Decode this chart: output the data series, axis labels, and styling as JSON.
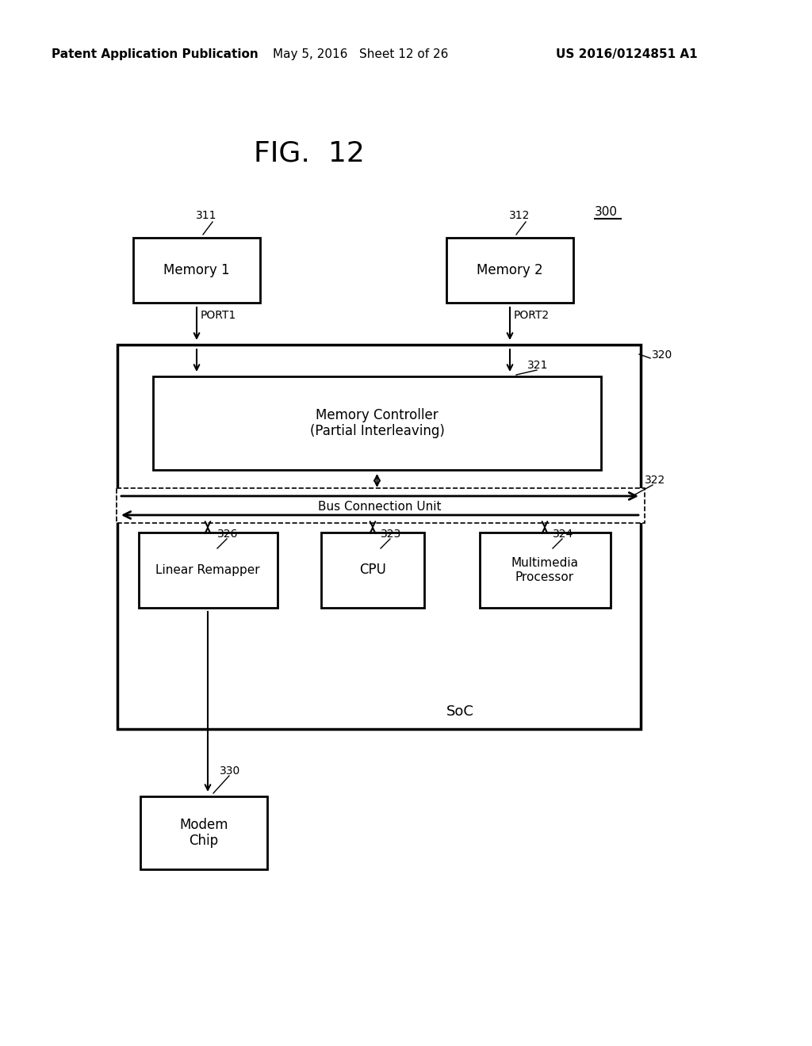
{
  "bg_color": "#ffffff",
  "header_left": "Patent Application Publication",
  "header_mid": "May 5, 2016   Sheet 12 of 26",
  "header_right": "US 2016/0124851 A1",
  "fig_label": "FIG.  12",
  "ref_300": "300",
  "ref_311": "311",
  "ref_312": "312",
  "ref_320": "320",
  "ref_321": "321",
  "ref_322": "322",
  "ref_323": "323",
  "ref_324": "324",
  "ref_326": "326",
  "ref_330": "330",
  "label_memory1": "Memory 1",
  "label_memory2": "Memory 2",
  "label_mem_ctrl": "Memory Controller\n(Partial Interleaving)",
  "label_bus": "Bus Connection Unit",
  "label_linear": "Linear Remapper",
  "label_cpu": "CPU",
  "label_multimedia": "Multimedia\nProcessor",
  "label_soc": "SoC",
  "label_modem": "Modem\nChip",
  "label_port1": "PORT1",
  "label_port2": "PORT2"
}
